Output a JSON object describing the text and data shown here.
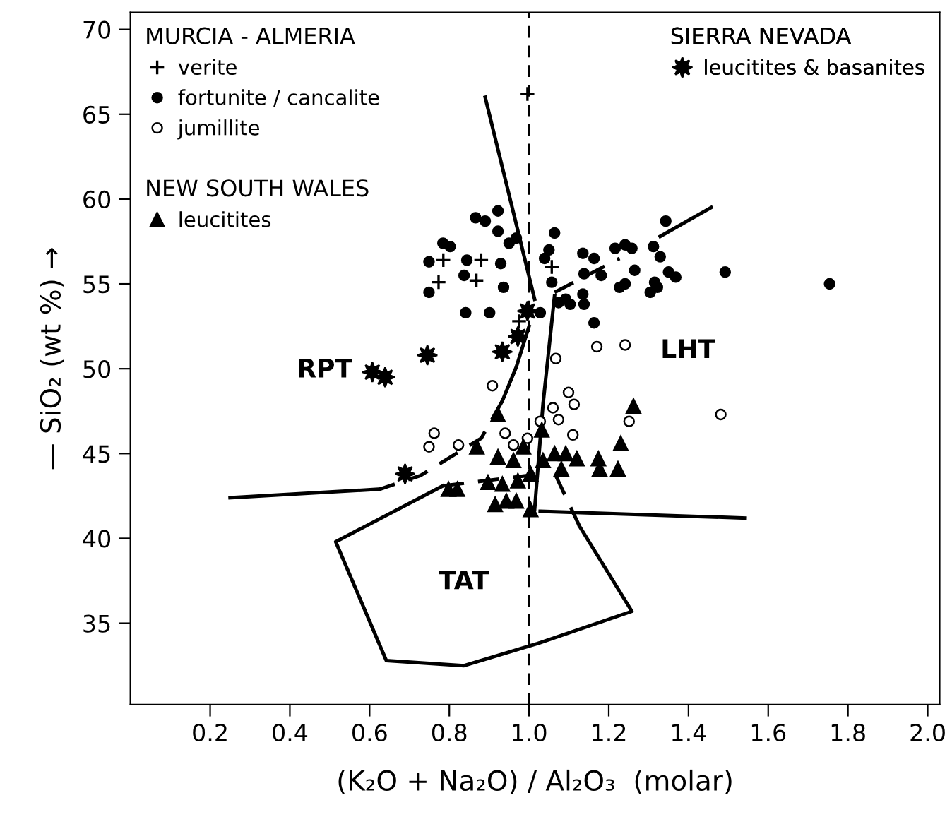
{
  "chart_data": {
    "type": "scatter",
    "xlabel": "(K₂O + Na₂O) / Al₂O₃  (molar)",
    "ylabel": "— SiO₂ (wt %) →",
    "xlim": [
      0,
      2.03
    ],
    "ylim": [
      30.2,
      71
    ],
    "xticks": [
      0.2,
      0.4,
      0.6,
      0.8,
      {
        "value": 1.0,
        "label": "1.0"
      },
      1.2,
      1.4,
      1.6,
      1.8,
      {
        "value": 2.0,
        "label": "2.0"
      }
    ],
    "yticks": [
      35,
      40,
      45,
      50,
      55,
      60,
      65,
      70
    ],
    "grid": false,
    "legend": "top left",
    "ref_lines": [
      {
        "axis": "x",
        "value": 1.0,
        "label": null,
        "color": "#000000",
        "line_style": "dashed"
      }
    ],
    "annotations": [
      "MURCIA - ALMERIA",
      "NEW SOUTH WALES",
      "SIERRA NEVADA",
      "RPT",
      "LHT",
      "TAT"
    ],
    "series": [
      {
        "name": "verite",
        "type": "scatter",
        "marker": "cross",
        "color": "#000000",
        "x": [
          0.785,
          0.773,
          0.88,
          0.868,
          0.975,
          1.057,
          0.996
        ],
        "values": [
          56.4,
          55.1,
          56.4,
          55.2,
          52.8,
          56.0,
          66.2
        ]
      },
      {
        "name": "fortunite / cancalite",
        "type": "scatter",
        "marker": "circle",
        "color": "#000000",
        "x": [
          0.866,
          0.89,
          0.922,
          0.922,
          0.784,
          0.802,
          0.95,
          0.968,
          0.749,
          0.844,
          0.929,
          0.837,
          0.749,
          0.936,
          0.841,
          0.901,
          1.064,
          1.05,
          1.039,
          1.057,
          1.135,
          1.163,
          1.138,
          1.181,
          1.216,
          1.241,
          1.258,
          1.312,
          1.329,
          1.343,
          1.265,
          1.241,
          1.227,
          1.315,
          1.322,
          1.304,
          1.35,
          1.368,
          1.492,
          1.754,
          1.028,
          1.074,
          1.092,
          1.103,
          1.135,
          1.138,
          1.163
        ],
        "values": [
          58.9,
          58.7,
          59.3,
          58.1,
          57.4,
          57.2,
          57.4,
          57.7,
          56.3,
          56.4,
          56.2,
          55.5,
          54.5,
          54.8,
          53.3,
          53.3,
          58.0,
          57.0,
          56.5,
          55.1,
          56.8,
          56.5,
          55.6,
          55.5,
          57.1,
          57.3,
          57.1,
          57.2,
          56.6,
          58.7,
          55.8,
          55.0,
          54.8,
          55.1,
          54.8,
          54.5,
          55.7,
          55.4,
          55.7,
          55.0,
          53.3,
          53.9,
          54.1,
          53.8,
          54.4,
          53.8,
          52.7
        ]
      },
      {
        "name": "jumillite",
        "type": "scatter",
        "marker": "circle",
        "color": "#ffffff",
        "x": [
          0.908,
          0.762,
          0.749,
          0.823,
          0.94,
          0.961,
          0.996,
          1.099,
          1.113,
          1.06,
          1.074,
          1.028,
          1.11,
          1.251,
          1.481,
          1.067,
          1.17,
          1.241
        ],
        "values": [
          49.0,
          46.2,
          45.4,
          45.5,
          46.2,
          45.5,
          45.9,
          48.6,
          47.9,
          47.7,
          47.0,
          46.9,
          46.1,
          46.9,
          47.3,
          50.6,
          51.3,
          51.4
        ]
      },
      {
        "name": "leucitites",
        "type": "scatter",
        "marker": "triangle",
        "color": "#000000",
        "x": [
          0.922,
          0.869,
          0.922,
          0.961,
          0.986,
          0.798,
          0.82,
          0.897,
          0.933,
          0.972,
          0.915,
          0.943,
          0.968,
          1.004,
          1.032,
          1.262,
          1.23,
          1.064,
          1.092,
          1.12,
          1.035,
          1.081,
          1.174,
          1.177,
          1.223,
          1.004
        ],
        "values": [
          47.3,
          45.4,
          44.8,
          44.6,
          45.4,
          42.9,
          42.9,
          43.3,
          43.2,
          43.4,
          42.0,
          42.2,
          42.2,
          41.7,
          46.4,
          47.8,
          45.6,
          45.0,
          45.0,
          44.7,
          44.6,
          44.1,
          44.7,
          44.1,
          44.1,
          43.8
        ]
      },
      {
        "name": "leucitites & basanites",
        "type": "scatter",
        "marker": "star",
        "color": "#000000",
        "x": [
          0.607,
          0.639,
          0.745,
          0.933,
          0.972,
          0.996,
          0.689
        ],
        "values": [
          49.8,
          49.5,
          50.8,
          51.0,
          51.9,
          53.4,
          43.8
        ]
      },
      {
        "type": "line",
        "line_style": "solid",
        "color": "#000000",
        "x": [
          0.89,
          1.014
        ],
        "values": [
          66.0,
          54.1
        ]
      },
      {
        "type": "line",
        "line_style": "solid",
        "color": "#000000",
        "x": [
          1.0,
          0.968,
          0.933
        ],
        "values": [
          52.5,
          50.1,
          48.1
        ]
      },
      {
        "type": "line",
        "line_style": "dashed",
        "color": "#000000",
        "x": [
          0.933,
          0.88,
          0.727,
          0.625
        ],
        "values": [
          48.1,
          45.9,
          43.7,
          42.9
        ]
      },
      {
        "type": "line",
        "line_style": "solid",
        "color": "#000000",
        "x": [
          0.625,
          0.25
        ],
        "values": [
          42.9,
          42.4
        ]
      },
      {
        "type": "line",
        "line_style": "solid",
        "color": "#000000",
        "x": [
          0.784,
          0.515,
          0.642,
          0.837,
          1.021,
          1.258,
          1.127
        ],
        "values": [
          43.1,
          39.8,
          32.8,
          32.5,
          33.8,
          35.7,
          40.7
        ]
      },
      {
        "type": "line",
        "line_style": "dashed",
        "color": "#000000",
        "x": [
          1.127,
          1.067
        ],
        "values": [
          40.7,
          43.7
        ]
      },
      {
        "type": "line",
        "line_style": "dashed",
        "color": "#000000",
        "x": [
          0.784,
          0.996
        ],
        "values": [
          43.1,
          43.7
        ]
      },
      {
        "type": "line",
        "line_style": "solid",
        "color": "#000000",
        "x": [
          1.064,
          1.035,
          1.014
        ],
        "values": [
          54.3,
          47.9,
          41.7
        ]
      },
      {
        "type": "line",
        "line_style": "dashed",
        "color": "#000000",
        "x": [
          1.064,
          1.227
        ],
        "values": [
          54.5,
          56.5
        ]
      },
      {
        "type": "line",
        "line_style": "solid",
        "color": "#000000",
        "x": [
          1.329,
          1.457
        ],
        "values": [
          57.8,
          59.5
        ]
      },
      {
        "type": "line",
        "line_style": "solid",
        "color": "#000000",
        "x": [
          1.028,
          1.542
        ],
        "values": [
          41.6,
          41.2
        ]
      }
    ]
  }
}
